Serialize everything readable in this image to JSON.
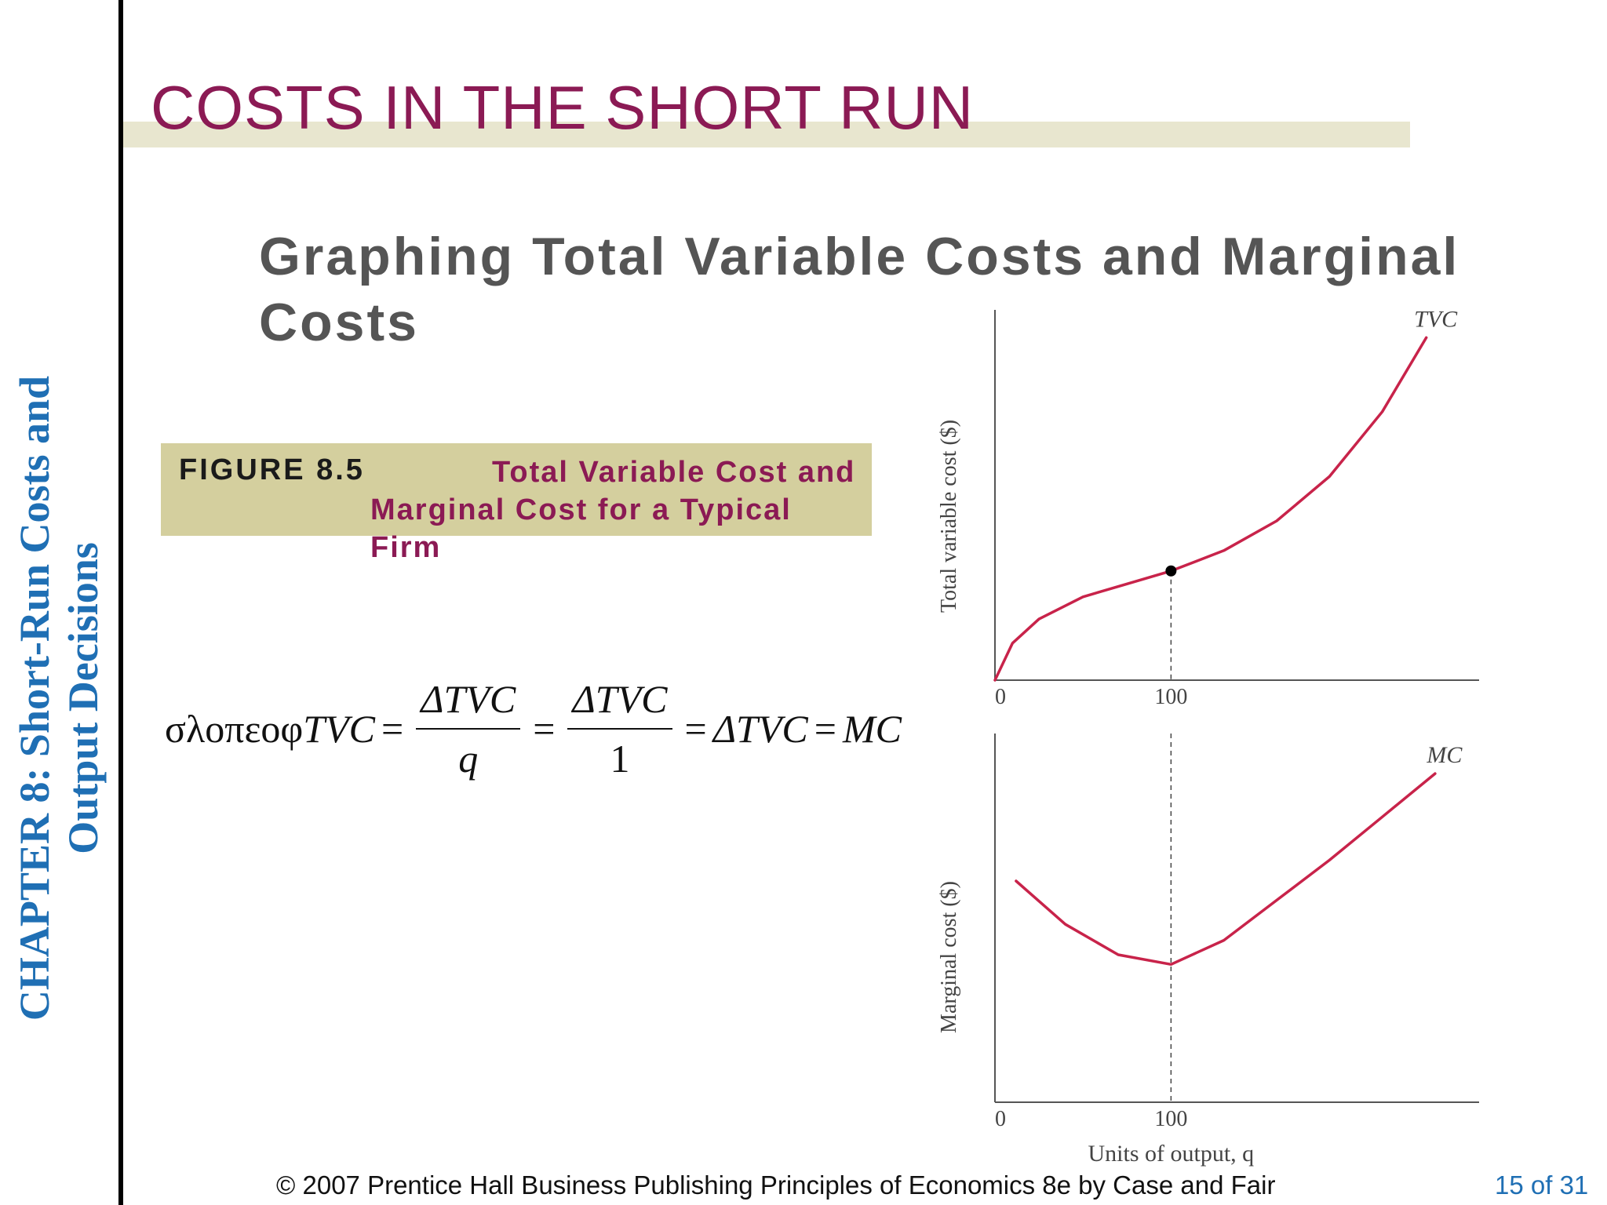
{
  "sidebar": {
    "chapter_line1": "CHAPTER 8:  Short-Run Costs and",
    "chapter_line2": "Output Decisions"
  },
  "slide": {
    "title": "COSTS IN THE SHORT RUN",
    "subtitle": "Graphing Total Variable Costs and Marginal Costs"
  },
  "figure": {
    "number": "FIGURE 8.5",
    "title": "Total Variable Cost and Marginal Cost for a Typical Firm"
  },
  "formula": {
    "lhs": "σλοπεοφ",
    "tvc": "TVC",
    "num1": "ΔTVC",
    "den1": "q",
    "num2": "ΔTVC",
    "den2": "1",
    "rhs1": "ΔTVC",
    "rhs2": "MC",
    "eq": "="
  },
  "chart_data": [
    {
      "type": "line",
      "series": [
        {
          "name": "TVC",
          "x": [
            0,
            10,
            25,
            50,
            75,
            100,
            130,
            160,
            190,
            220,
            245
          ],
          "y": [
            0,
            20,
            33,
            45,
            52,
            59,
            70,
            86,
            110,
            145,
            185
          ]
        }
      ],
      "ylabel": "Total variable cost ($)",
      "x_ticks": [
        "0",
        "100"
      ],
      "marked_point": {
        "x": 100,
        "y": 59
      },
      "xlim": [
        0,
        275
      ],
      "ylim": [
        0,
        200
      ]
    },
    {
      "type": "line",
      "series": [
        {
          "name": "MC",
          "x": [
            12,
            40,
            70,
            100,
            130,
            160,
            190,
            220,
            250
          ],
          "y": [
            138,
            111,
            92,
            86,
            101,
            126,
            151,
            178,
            205
          ]
        }
      ],
      "ylabel": "Marginal cost ($)",
      "xlabel": "Units of output, q",
      "x_ticks": [
        "0",
        "100"
      ],
      "xlim": [
        0,
        275
      ],
      "ylim": [
        0,
        230
      ]
    }
  ],
  "footer": {
    "copyright": "© 2007 Prentice Hall Business Publishing   Principles of Economics 8e by Case and Fair",
    "page": "15 of 31"
  }
}
